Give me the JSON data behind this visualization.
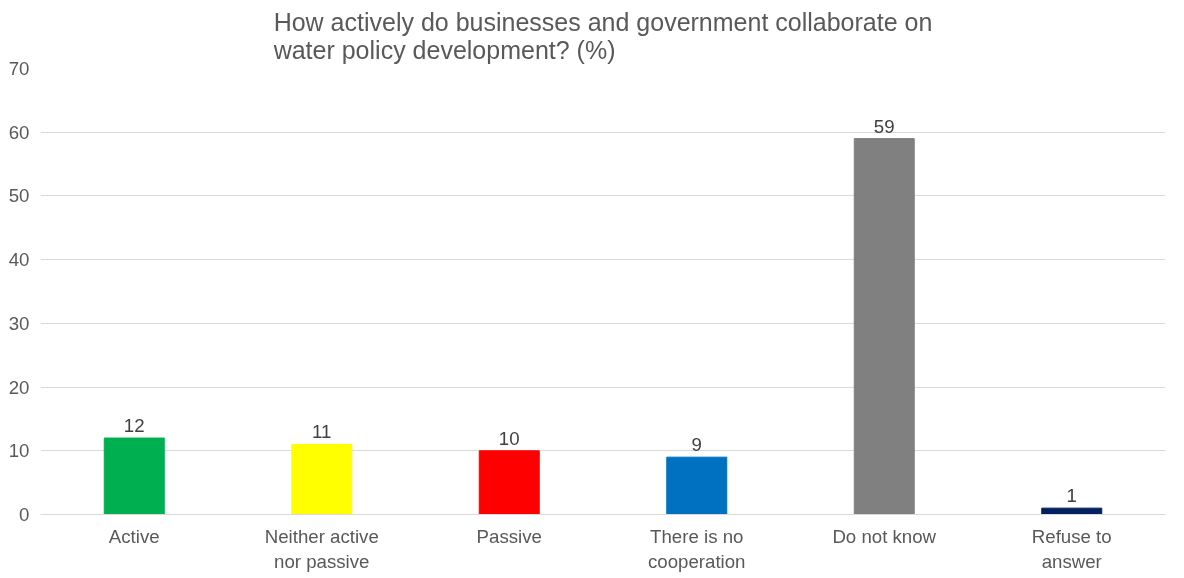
{
  "chart_data": {
    "type": "bar",
    "title": "How actively do businesses and government collaborate on water policy development? (%)",
    "categories": [
      "Active",
      "Neither active nor passive",
      "Passive",
      "There is no cooperation",
      "Do not know",
      "Refuse to answer"
    ],
    "values": [
      12,
      11,
      10,
      9,
      59,
      1
    ],
    "colors": [
      "#00b050",
      "#ffff00",
      "#ff0000",
      "#0070c0",
      "#808080",
      "#002060"
    ],
    "ylim": [
      0,
      70
    ],
    "yticks": [
      0,
      10,
      20,
      30,
      40,
      50,
      60,
      70
    ],
    "grid": "y",
    "data_labels": true
  }
}
